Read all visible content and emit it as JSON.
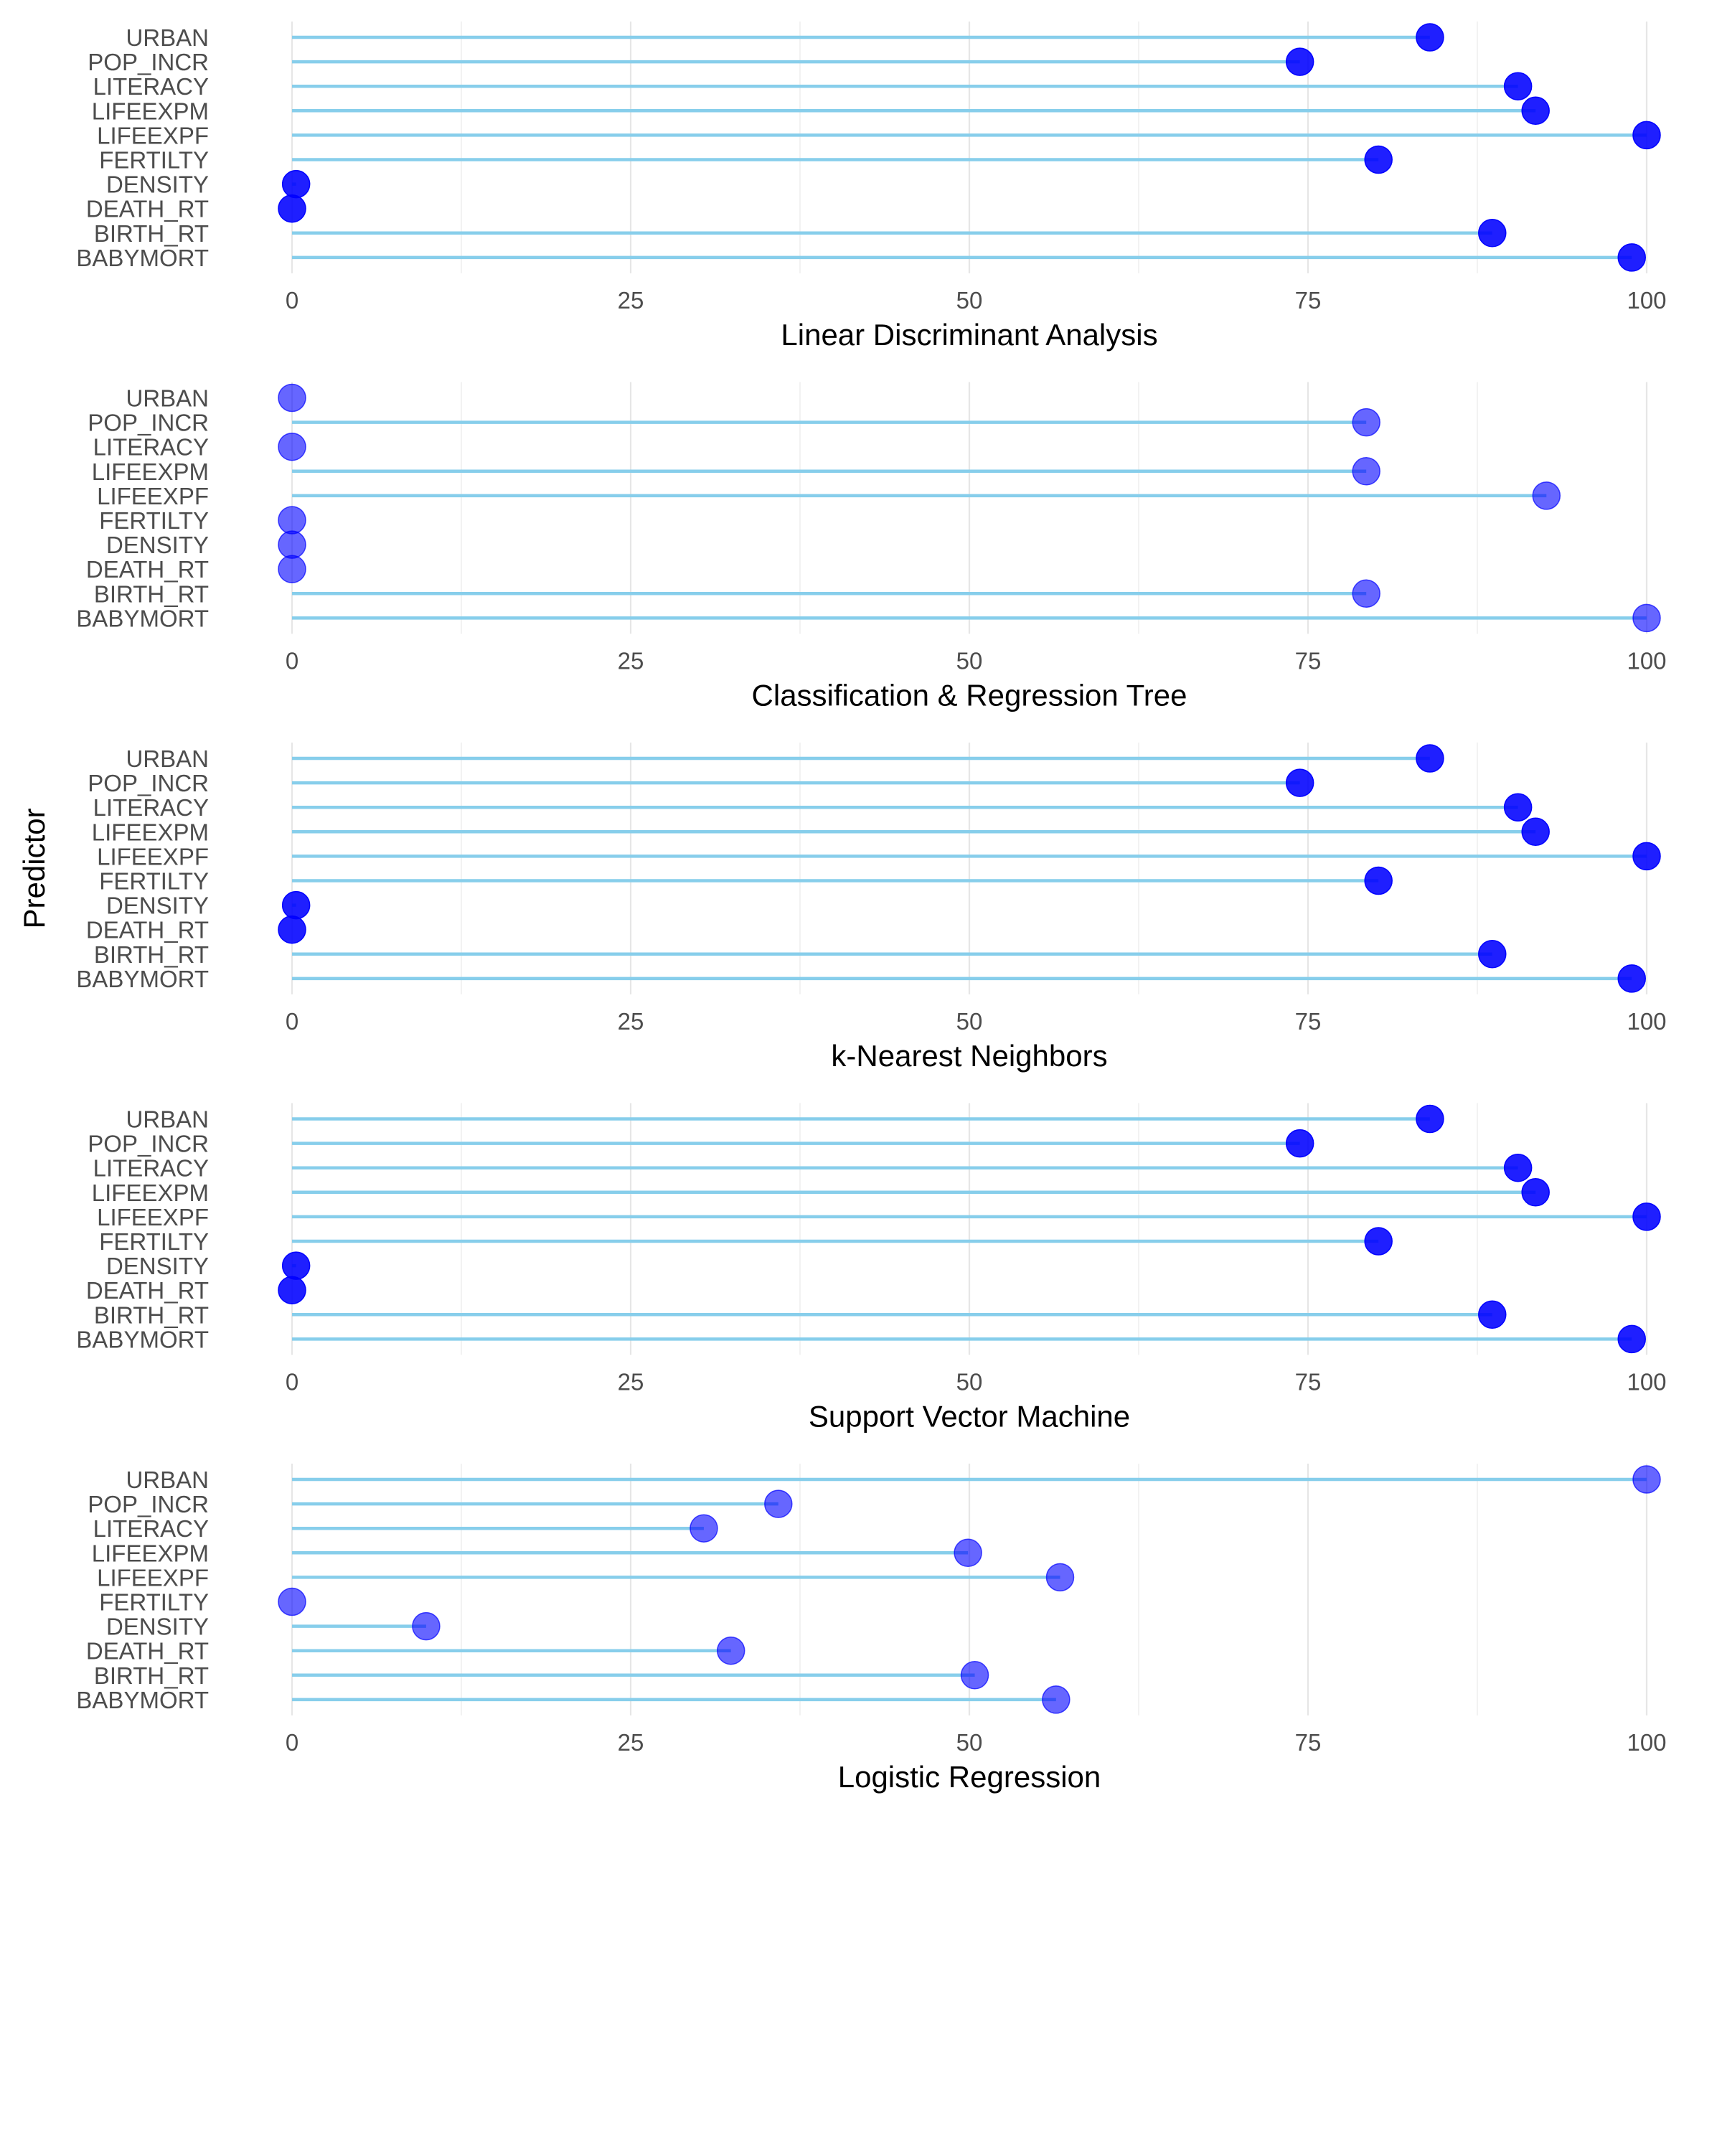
{
  "colors": {
    "segment": "#87CEEB",
    "point": "#0000FF",
    "grid_major": "#E6E6E6",
    "grid_minor": "#F2F2F2",
    "tick_text": "#4D4D4D",
    "title_text": "#000000"
  },
  "chart_data": {
    "type": "lollipop",
    "ylabel": "Predictor",
    "categories": [
      "URBAN",
      "POP_INCR",
      "LITERACY",
      "LIFEEXPM",
      "LIFEEXPF",
      "FERTILTY",
      "DENSITY",
      "DEATH_RT",
      "BIRTH_RT",
      "BABYMORT"
    ],
    "x_ticks": [
      "0",
      "25",
      "50",
      "75",
      "100"
    ],
    "xlim": [
      0,
      100
    ],
    "grid": true,
    "panels": [
      {
        "xlabel": "Linear Discriminant Analysis",
        "point_opacity": 0.88,
        "values": [
          84,
          74.4,
          90.5,
          91.8,
          100,
          80.2,
          0.3,
          0,
          88.6,
          98.9
        ]
      },
      {
        "xlabel": "Classification & Regression Tree",
        "point_opacity": 0.6,
        "values": [
          0,
          79.3,
          0,
          79.3,
          92.6,
          0,
          0,
          0,
          79.3,
          100
        ]
      },
      {
        "xlabel": "k-Nearest Neighbors",
        "point_opacity": 0.88,
        "values": [
          84,
          74.4,
          90.5,
          91.8,
          100,
          80.2,
          0.3,
          0,
          88.6,
          98.9
        ]
      },
      {
        "xlabel": "Support Vector Machine",
        "point_opacity": 0.88,
        "values": [
          84,
          74.4,
          90.5,
          91.8,
          100,
          80.2,
          0.3,
          0,
          88.6,
          98.9
        ]
      },
      {
        "xlabel": "Logistic Regression",
        "point_opacity": 0.6,
        "values": [
          100,
          35.9,
          30.4,
          49.9,
          56.7,
          0,
          9.9,
          32.4,
          50.4,
          56.4
        ]
      }
    ]
  }
}
